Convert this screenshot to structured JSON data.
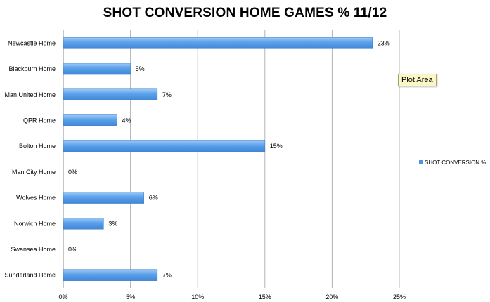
{
  "chart_data": {
    "type": "bar",
    "orientation": "horizontal",
    "title": "SHOT CONVERSION HOME GAMES % 11/12",
    "categories": [
      "Newcastle Home",
      "Blackburn Home",
      "Man United Home",
      "QPR Home",
      "Bolton Home",
      "Man City Home",
      "Wolves Home",
      "Norwich Home",
      "Swansea Home",
      "Sunderland Home"
    ],
    "series": [
      {
        "name": "SHOT CONVERSION %",
        "values": [
          23,
          5,
          7,
          4,
          15,
          0,
          6,
          3,
          0,
          7
        ],
        "color": "#4d94e0"
      }
    ],
    "data_labels": [
      "23%",
      "5%",
      "7%",
      "4%",
      "15%",
      "0%",
      "6%",
      "3%",
      "0%",
      "7%"
    ],
    "xticks": [
      "0%",
      "5%",
      "10%",
      "15%",
      "20%",
      "25%"
    ],
    "xlim": [
      0,
      25
    ],
    "grid": "vertical",
    "legend": "right",
    "tooltip": "Plot Area"
  }
}
